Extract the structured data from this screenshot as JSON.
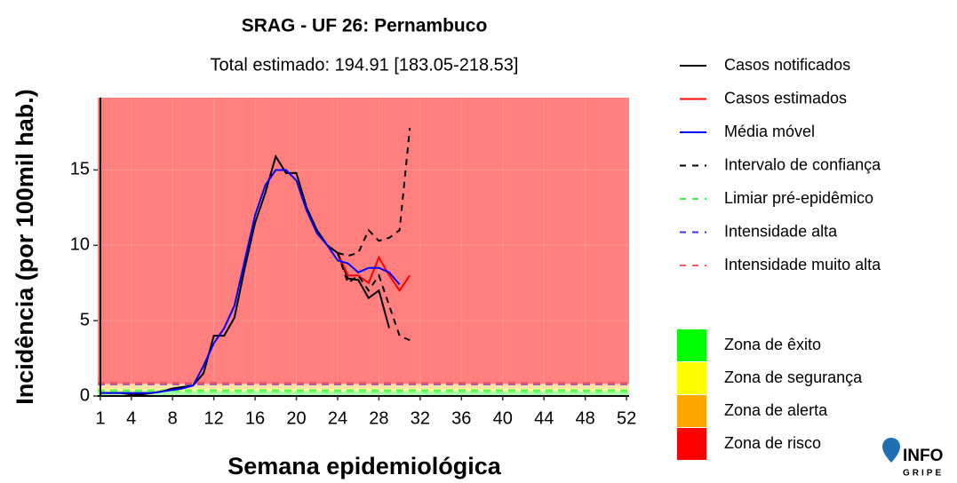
{
  "chart_data": {
    "type": "line",
    "title": "SRAG - UF 26: Pernambuco",
    "subtitle": "Total estimado: 194.91 [183.05-218.53]",
    "xlabel": "Semana epidemiológica",
    "ylabel": "Incidência (por 100mil hab.)",
    "xlim": [
      0.75,
      52.25
    ],
    "ylim": [
      0,
      19.8
    ],
    "xticks": [
      1,
      4,
      8,
      12,
      16,
      20,
      24,
      28,
      32,
      36,
      40,
      44,
      48,
      52
    ],
    "yticks": [
      0,
      5,
      10,
      15
    ],
    "series": [
      {
        "name": "Casos notificados",
        "color": "#000000",
        "x": [
          1,
          2,
          3,
          4,
          5,
          6,
          7,
          8,
          9,
          10,
          11,
          12,
          13,
          14,
          15,
          16,
          17,
          18,
          19,
          20,
          21,
          22,
          23,
          24,
          25,
          26,
          27,
          28,
          29
        ],
        "values": [
          0.2,
          0.2,
          0.2,
          0.1,
          0.1,
          0.2,
          0.3,
          0.5,
          0.6,
          0.7,
          1.5,
          4.0,
          4.0,
          5.2,
          8.5,
          11.5,
          13.5,
          15.9,
          14.8,
          14.8,
          12.5,
          11.0,
          10.0,
          9.5,
          7.8,
          7.7,
          6.5,
          7.0,
          4.5
        ]
      },
      {
        "name": "Casos estimados",
        "color": "#ff0000",
        "x": [
          24,
          25,
          26,
          27,
          28,
          29,
          30,
          31
        ],
        "values": [
          9.5,
          8.0,
          8.0,
          7.5,
          9.2,
          8.0,
          7.0,
          8.0
        ]
      },
      {
        "name": "Média móvel",
        "color": "#0000ff",
        "x": [
          1,
          2,
          3,
          4,
          5,
          6,
          7,
          8,
          9,
          10,
          11,
          12,
          13,
          14,
          15,
          16,
          17,
          18,
          19,
          20,
          21,
          22,
          23,
          24,
          25,
          26,
          27,
          28,
          29,
          30
        ],
        "values": [
          0.2,
          0.2,
          0.2,
          0.2,
          0.2,
          0.2,
          0.3,
          0.4,
          0.5,
          0.7,
          2.0,
          3.5,
          4.5,
          6.0,
          9.0,
          12.0,
          14.0,
          15.0,
          15.0,
          14.3,
          12.3,
          10.8,
          10.0,
          9.0,
          8.8,
          8.2,
          8.5,
          8.5,
          8.2,
          7.4
        ]
      }
    ],
    "interval": {
      "name": "Intervalo de confiança",
      "color": "#000000",
      "x": [
        24,
        25,
        26,
        27,
        28,
        29,
        30,
        31
      ],
      "upper": [
        9.5,
        9.3,
        9.5,
        11.0,
        10.3,
        10.5,
        11.0,
        17.8
      ],
      "lower": [
        9.5,
        7.5,
        8.0,
        7.0,
        8.0,
        6.0,
        4.0,
        3.7
      ]
    },
    "thresholds": [
      {
        "name": "Limiar pré-epidêmico",
        "color": "#33ff33",
        "value": 0.35
      },
      {
        "name": "Intensidade alta",
        "color": "#3333ff",
        "value": 0.8
      },
      {
        "name": "Intensidade muito alta",
        "color": "#ff5555",
        "value": 0.85
      }
    ],
    "zones": [
      {
        "name": "Zona de êxito",
        "color": "#00ff00",
        "range": [
          0,
          0.3
        ]
      },
      {
        "name": "Zona de segurança",
        "color": "#ffff00",
        "range": [
          0.3,
          0.5
        ]
      },
      {
        "name": "Zona de alerta",
        "color": "#ffa500",
        "range": [
          0.5,
          0.8
        ]
      },
      {
        "name": "Zona de risco",
        "color": "#ff0000",
        "range": [
          0.8,
          19.8
        ]
      }
    ],
    "logo": [
      "INFO",
      "GRIPE"
    ]
  }
}
